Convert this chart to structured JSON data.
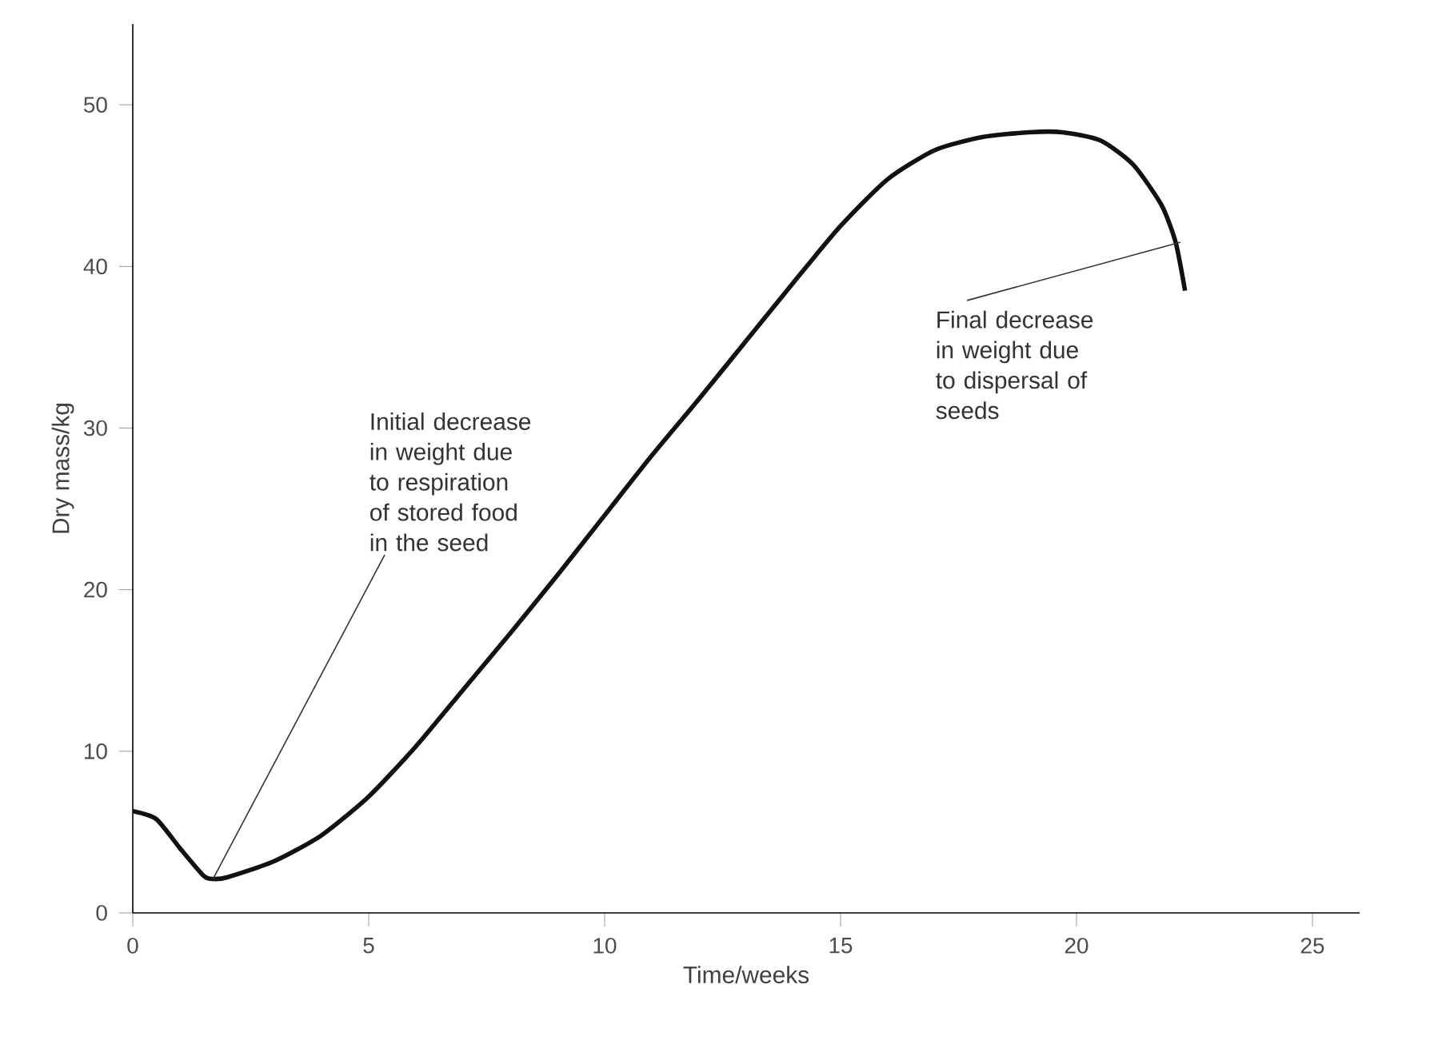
{
  "chart_data": {
    "type": "line",
    "xlabel": "Time/weeks",
    "ylabel": "Dry mass/kg",
    "xlim": [
      0,
      26
    ],
    "ylim": [
      0,
      55
    ],
    "xticks": [
      0,
      5,
      10,
      15,
      20,
      25
    ],
    "yticks": [
      0,
      10,
      20,
      30,
      40,
      50
    ],
    "grid": false,
    "marker": "none",
    "line_style": "solid",
    "series": [
      {
        "color": "#111111",
        "x": [
          0,
          0.5,
          1,
          1.5,
          1.7,
          2,
          3,
          4,
          5,
          6,
          7,
          8,
          9,
          10,
          11,
          12,
          13,
          14,
          15,
          16,
          17,
          18,
          19,
          19.7,
          20.5,
          21.2,
          21.8,
          22.1,
          22.3
        ],
        "values": [
          6.3,
          5.8,
          4,
          2.3,
          2.1,
          2.2,
          3.2,
          4.8,
          7.2,
          10.3,
          13.8,
          17.3,
          20.9,
          24.6,
          28.3,
          31.8,
          35.4,
          39,
          42.5,
          45.4,
          47.2,
          48,
          48.3,
          48.3,
          47.8,
          46.3,
          43.8,
          41.5,
          38.5
        ]
      }
    ],
    "annotations": [
      {
        "text": "Initial decrease in weight due to respiration of stored food in the seed",
        "x": 1.7,
        "y": 2.1
      },
      {
        "text": "Final decrease in weight due to dispersal of seeds",
        "x": 22.2,
        "y": 41.5
      }
    ]
  }
}
